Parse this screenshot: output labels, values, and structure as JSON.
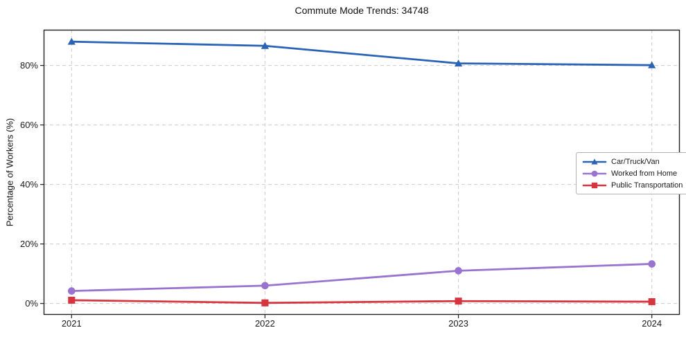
{
  "figure": {
    "background": "#ffffff"
  },
  "chart_data": {
    "type": "line",
    "title": "Commute Mode Trends: 34748",
    "xlabel": "",
    "ylabel": "Percentage of Workers (%)",
    "x": [
      2021,
      2022,
      2023,
      2024
    ],
    "xtick_labels": [
      "2021",
      "2022",
      "2023",
      "2024"
    ],
    "yticks": [
      0,
      20,
      40,
      60,
      80
    ],
    "ytick_labels": [
      "0%",
      "20%",
      "40%",
      "60%",
      "80%"
    ],
    "ylim": [
      -3.8,
      92.0
    ],
    "grid": true,
    "grid_style": "dashed",
    "legend_position": "center-right",
    "series": [
      {
        "name": "Car/Truck/Van",
        "marker": "triangle",
        "color": "#2a63b6",
        "values": [
          88.0,
          86.6,
          80.7,
          80.1
        ]
      },
      {
        "name": "Worked from Home",
        "marker": "circle",
        "color": "#9873cf",
        "values": [
          4.2,
          6.0,
          11.0,
          13.3
        ]
      },
      {
        "name": "Public Transportation",
        "marker": "square",
        "color": "#d63540",
        "values": [
          1.1,
          0.2,
          0.8,
          0.6
        ]
      }
    ],
    "colors": {
      "grid": "#cccccc",
      "spine": "#1f1f1f",
      "text": "#1a1a1a"
    }
  }
}
